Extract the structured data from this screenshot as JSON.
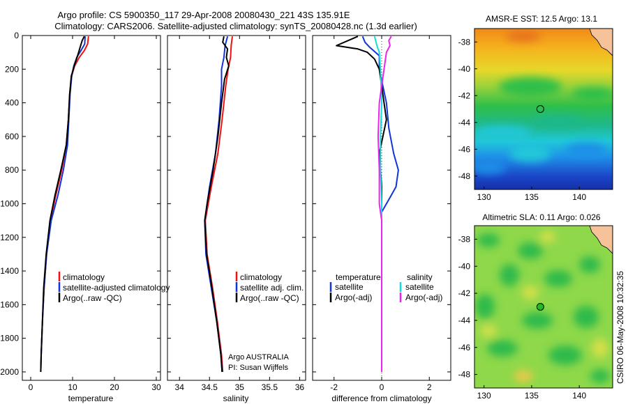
{
  "title": {
    "line1": "Argo profile: CS 5900350_117 29-Apr-2008 20080430_221 43S 135.91E",
    "line2": "Climatology: CARS2006. Satellite-adjusted climatology: synTS_20080428.nc (1.3d earlier)"
  },
  "side_stamp": "CSIRO 06-May-2008 10:32:35",
  "credit": {
    "line1": "Argo AUSTRALIA",
    "line2": "PI: Susan Wijffels"
  },
  "colors": {
    "red": "#ee1111",
    "blue": "#1133dd",
    "black": "#000000",
    "cyan": "#11dddd",
    "magenta": "#ee22ee"
  },
  "chart_data": [
    {
      "type": "line",
      "xlabel": "temperature",
      "ylabel": "",
      "xlim": [
        -2,
        31
      ],
      "ylim": [
        0,
        2050
      ],
      "y_reversed": true,
      "xticks": [
        0,
        10,
        20,
        30
      ],
      "yticks": [
        0,
        200,
        400,
        600,
        800,
        1000,
        1200,
        1400,
        1600,
        1800,
        2000
      ],
      "legend": {
        "placement": "lower-right",
        "entries": [
          "climatology",
          "satellite-adjusted climatology",
          "Argo(..raw -QC)"
        ]
      },
      "series": [
        {
          "name": "climatology",
          "color": "red",
          "points": [
            [
              13.8,
              5
            ],
            [
              13.6,
              50
            ],
            [
              12.8,
              90
            ],
            [
              11.6,
              130
            ],
            [
              10.5,
              180
            ],
            [
              9.8,
              240
            ],
            [
              9.3,
              350
            ],
            [
              9.0,
              500
            ],
            [
              8.5,
              650
            ],
            [
              7.4,
              800
            ],
            [
              6.0,
              950
            ],
            [
              4.7,
              1100
            ],
            [
              3.8,
              1300
            ],
            [
              3.2,
              1500
            ],
            [
              2.8,
              1700
            ],
            [
              2.5,
              1900
            ],
            [
              2.4,
              2000
            ]
          ]
        },
        {
          "name": "satellite-adjusted climatology",
          "color": "blue",
          "points": [
            [
              13.0,
              5
            ],
            [
              12.9,
              50
            ],
            [
              12.0,
              90
            ],
            [
              11.0,
              130
            ],
            [
              10.3,
              180
            ],
            [
              9.8,
              240
            ],
            [
              9.4,
              350
            ],
            [
              9.1,
              500
            ],
            [
              8.8,
              650
            ],
            [
              7.8,
              800
            ],
            [
              6.5,
              950
            ],
            [
              4.9,
              1100
            ],
            [
              3.8,
              1300
            ],
            [
              3.2,
              1500
            ],
            [
              2.8,
              1700
            ],
            [
              2.5,
              1900
            ],
            [
              2.4,
              2000
            ]
          ]
        },
        {
          "name": "Argo(..raw -QC)",
          "color": "black",
          "points": [
            [
              12.8,
              5
            ],
            [
              12.3,
              30
            ],
            [
              11.8,
              70
            ],
            [
              11.2,
              120
            ],
            [
              10.4,
              180
            ],
            [
              9.7,
              240
            ],
            [
              9.3,
              350
            ],
            [
              9.0,
              500
            ],
            [
              8.5,
              650
            ],
            [
              7.2,
              800
            ],
            [
              5.8,
              950
            ],
            [
              4.6,
              1100
            ],
            [
              3.7,
              1300
            ],
            [
              3.1,
              1500
            ],
            [
              2.8,
              1700
            ],
            [
              2.5,
              1900
            ],
            [
              2.4,
              2000
            ]
          ]
        }
      ]
    },
    {
      "type": "line",
      "xlabel": "salinity",
      "ylabel": "",
      "xlim": [
        33.8,
        36.1
      ],
      "ylim": [
        0,
        2050
      ],
      "y_reversed": true,
      "xticks": [
        34,
        34.5,
        35,
        35.5,
        36
      ],
      "legend": {
        "placement": "lower-right",
        "entries": [
          "climatology",
          "satellite adj. clim.",
          "Argo(..raw -QC)"
        ]
      },
      "series": [
        {
          "name": "climatology",
          "color": "red",
          "points": [
            [
              34.88,
              5
            ],
            [
              34.86,
              60
            ],
            [
              34.85,
              130
            ],
            [
              34.81,
              200
            ],
            [
              34.77,
              300
            ],
            [
              34.71,
              500
            ],
            [
              34.64,
              700
            ],
            [
              34.53,
              900
            ],
            [
              34.43,
              1100
            ],
            [
              34.46,
              1300
            ],
            [
              34.55,
              1500
            ],
            [
              34.63,
              1700
            ],
            [
              34.7,
              1900
            ],
            [
              34.72,
              2000
            ]
          ]
        },
        {
          "name": "satellite adj. clim.",
          "color": "blue",
          "points": [
            [
              34.8,
              5
            ],
            [
              34.76,
              60
            ],
            [
              34.74,
              130
            ],
            [
              34.7,
              200
            ],
            [
              34.7,
              300
            ],
            [
              34.66,
              500
            ],
            [
              34.6,
              700
            ],
            [
              34.5,
              900
            ],
            [
              34.42,
              1100
            ],
            [
              34.44,
              1300
            ],
            [
              34.53,
              1500
            ],
            [
              34.62,
              1700
            ],
            [
              34.69,
              1900
            ],
            [
              34.71,
              2000
            ]
          ]
        },
        {
          "name": "Argo(..raw -QC)",
          "color": "black",
          "points": [
            [
              34.74,
              5
            ],
            [
              34.72,
              40
            ],
            [
              34.8,
              80
            ],
            [
              34.78,
              130
            ],
            [
              34.82,
              180
            ],
            [
              34.75,
              260
            ],
            [
              34.7,
              400
            ],
            [
              34.64,
              600
            ],
            [
              34.56,
              800
            ],
            [
              34.46,
              1000
            ],
            [
              34.42,
              1100
            ],
            [
              34.45,
              1300
            ],
            [
              34.54,
              1500
            ],
            [
              34.62,
              1700
            ],
            [
              34.69,
              1900
            ],
            [
              34.71,
              2000
            ]
          ]
        }
      ]
    },
    {
      "type": "line",
      "xlabel": "difference from climatology",
      "ylabel": "",
      "xlim": [
        -2.9,
        2.9
      ],
      "ylim": [
        0,
        2050
      ],
      "y_reversed": true,
      "xticks": [
        -2,
        0,
        2
      ],
      "legend": {
        "placement": "lower-center",
        "groups": [
          {
            "heading": "temperature",
            "entries": [
              {
                "label": "satellite",
                "color": "blue"
              },
              {
                "label": "Argo(-adj)",
                "color": "black"
              }
            ]
          },
          {
            "heading": "salinity",
            "entries": [
              {
                "label": "satellite",
                "color": "cyan"
              },
              {
                "label": "Argo(-adj)",
                "color": "magenta"
              }
            ]
          }
        ]
      },
      "series": [
        {
          "name": "temperature satellite",
          "color": "blue",
          "points": [
            [
              -0.8,
              5
            ],
            [
              -0.7,
              40
            ],
            [
              -0.5,
              70
            ],
            [
              -0.1,
              120
            ],
            [
              -0.1,
              200
            ],
            [
              0.2,
              400
            ],
            [
              0.3,
              550
            ],
            [
              0.5,
              700
            ],
            [
              0.7,
              800
            ],
            [
              0.6,
              900
            ],
            [
              0.4,
              950
            ],
            [
              0.0,
              1050
            ],
            [
              0.0,
              2000
            ]
          ]
        },
        {
          "name": "temperature Argo(-adj)",
          "color": "black",
          "points": [
            [
              -1.0,
              5
            ],
            [
              -1.9,
              60
            ],
            [
              -1.0,
              80
            ],
            [
              -0.6,
              100
            ],
            [
              -0.3,
              140
            ],
            [
              -0.1,
              200
            ],
            [
              0.0,
              300
            ],
            [
              0.1,
              400
            ],
            [
              0.2,
              500
            ],
            [
              0.05,
              600
            ],
            [
              -0.1,
              700
            ],
            [
              -0.05,
              800
            ],
            [
              0.0,
              900
            ],
            [
              0.0,
              2000
            ]
          ]
        },
        {
          "name": "salinity satellite",
          "color": "cyan",
          "points": [
            [
              -0.3,
              5
            ],
            [
              -0.2,
              60
            ],
            [
              -0.1,
              100
            ],
            [
              -0.05,
              200
            ],
            [
              0.0,
              400
            ],
            [
              -0.05,
              600
            ],
            [
              -0.05,
              800
            ],
            [
              0.0,
              1000
            ],
            [
              0.0,
              2000
            ]
          ]
        },
        {
          "name": "salinity Argo(-adj)",
          "color": "magenta",
          "points": [
            [
              0.4,
              5
            ],
            [
              0.3,
              30
            ],
            [
              0.35,
              60
            ],
            [
              0.2,
              100
            ],
            [
              0.1,
              200
            ],
            [
              0.0,
              300
            ],
            [
              -0.1,
              400
            ],
            [
              -0.15,
              600
            ],
            [
              -0.1,
              800
            ],
            [
              -0.1,
              1000
            ],
            [
              0.0,
              1100
            ],
            [
              0.0,
              2000
            ]
          ]
        }
      ]
    },
    {
      "type": "heatmap",
      "title": "AMSR-E SST: 12.5 Argo: 13.1",
      "xlim": [
        129,
        143.5
      ],
      "ylim": [
        -49,
        -37
      ],
      "xticks": [
        130,
        135,
        140
      ],
      "yticks": [
        -38,
        -40,
        -42,
        -44,
        -46,
        -48
      ],
      "marker": {
        "lon": 135.91,
        "lat": -43.0
      }
    },
    {
      "type": "heatmap",
      "title": "Altimetric SLA: 0.11 Argo: 0.026",
      "xlim": [
        129,
        143.5
      ],
      "ylim": [
        -49,
        -37
      ],
      "xticks": [
        130,
        135,
        140
      ],
      "yticks": [
        -38,
        -40,
        -42,
        -44,
        -46,
        -48
      ],
      "marker": {
        "lon": 135.91,
        "lat": -43.0
      }
    }
  ]
}
